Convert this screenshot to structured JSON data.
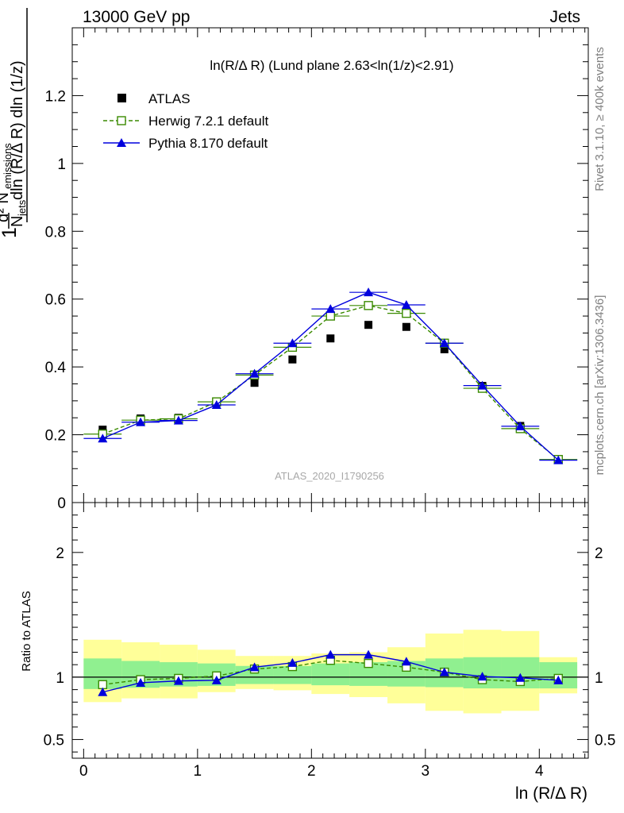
{
  "header": {
    "left": "13000 GeV pp",
    "right": "Jets"
  },
  "side_labels": {
    "rivet": "Rivet 3.1.10, ≥ 400k events",
    "mcplots": "mcplots.cern.ch [arXiv:1306.3436]"
  },
  "watermark": "ATLAS_2020_I1790256",
  "chart_data": [
    {
      "type": "scatter",
      "title": "ln(R/Δ R) (Lund plane 2.63<ln(1/z)<2.91)",
      "ylabel": "1/N_jets d²N_emissions / dln(R/Δ R) dln(1/z)",
      "xlabel": "ln (R/Δ R)",
      "xlim": [
        -0.1,
        4.43
      ],
      "ylim": [
        0,
        1.4
      ],
      "x_ticks": [
        "0",
        "1",
        "2",
        "3",
        "4"
      ],
      "y_ticks": [
        "0",
        "0.2",
        "0.4",
        "0.6",
        "0.8",
        "1",
        "1.2"
      ],
      "legend_placement": "top-left",
      "x": [
        0.167,
        0.5,
        0.833,
        1.167,
        1.5,
        1.833,
        2.167,
        2.5,
        2.833,
        3.167,
        3.5,
        3.833,
        4.167
      ],
      "series": [
        {
          "name": "ATLAS",
          "style": "data",
          "color": "#000000",
          "values": [
            0.215,
            0.248,
            0.25,
            0.295,
            0.353,
            0.422,
            0.484,
            0.524,
            0.518,
            0.452,
            0.344,
            0.226,
            0.128
          ]
        },
        {
          "name": "Herwig 7.2.1 default",
          "style": "dashed-open-square",
          "color": "#3a8a00",
          "values": [
            0.202,
            0.243,
            0.247,
            0.297,
            0.376,
            0.458,
            0.55,
            0.581,
            0.558,
            0.47,
            0.337,
            0.218,
            0.127
          ]
        },
        {
          "name": "Pythia 8.170 default",
          "style": "solid-triangle",
          "color": "#0000dd",
          "values": [
            0.189,
            0.237,
            0.242,
            0.288,
            0.38,
            0.47,
            0.571,
            0.62,
            0.583,
            0.47,
            0.345,
            0.225,
            0.125
          ]
        }
      ]
    },
    {
      "type": "line",
      "ylabel": "Ratio to ATLAS",
      "xlabel": "ln (R/Δ R)",
      "xlim": [
        -0.1,
        4.43
      ],
      "ylim": [
        0.35,
        2.4
      ],
      "y_ticks": [
        "0.5",
        "1",
        "2"
      ],
      "x_ticks": [
        "0",
        "1",
        "2",
        "3",
        "4"
      ],
      "reference_line": 1,
      "x_edges": [
        0,
        0.333,
        0.667,
        1.0,
        1.333,
        1.667,
        2.0,
        2.333,
        2.667,
        3.0,
        3.333,
        3.667,
        4.0,
        4.333
      ],
      "band_inner": {
        "color": "#90f090",
        "lower": [
          0.905,
          0.915,
          0.925,
          0.93,
          0.945,
          0.945,
          0.935,
          0.93,
          0.925,
          0.92,
          0.91,
          0.91,
          0.91
        ],
        "upper": [
          1.15,
          1.13,
          1.12,
          1.11,
          1.09,
          1.09,
          1.11,
          1.12,
          1.13,
          1.15,
          1.16,
          1.16,
          1.12
        ]
      },
      "band_outer": {
        "color": "#ffff99",
        "lower": [
          0.8,
          0.83,
          0.83,
          0.88,
          0.905,
          0.895,
          0.865,
          0.84,
          0.79,
          0.73,
          0.71,
          0.73,
          0.87
        ],
        "upper": [
          1.3,
          1.28,
          1.26,
          1.22,
          1.17,
          1.17,
          1.19,
          1.2,
          1.24,
          1.35,
          1.38,
          1.37,
          1.16
        ]
      },
      "series": [
        {
          "name": "Herwig 7.2.1 default",
          "color": "#3a8a00",
          "values": [
            0.94,
            0.98,
            0.99,
            1.01,
            1.065,
            1.085,
            1.135,
            1.11,
            1.08,
            1.04,
            0.98,
            0.965,
            0.99
          ]
        },
        {
          "name": "Pythia 8.170 default",
          "color": "#0000dd",
          "values": [
            0.88,
            0.955,
            0.97,
            0.975,
            1.08,
            1.115,
            1.18,
            1.18,
            1.125,
            1.04,
            1.005,
            0.995,
            0.975
          ]
        }
      ]
    }
  ]
}
